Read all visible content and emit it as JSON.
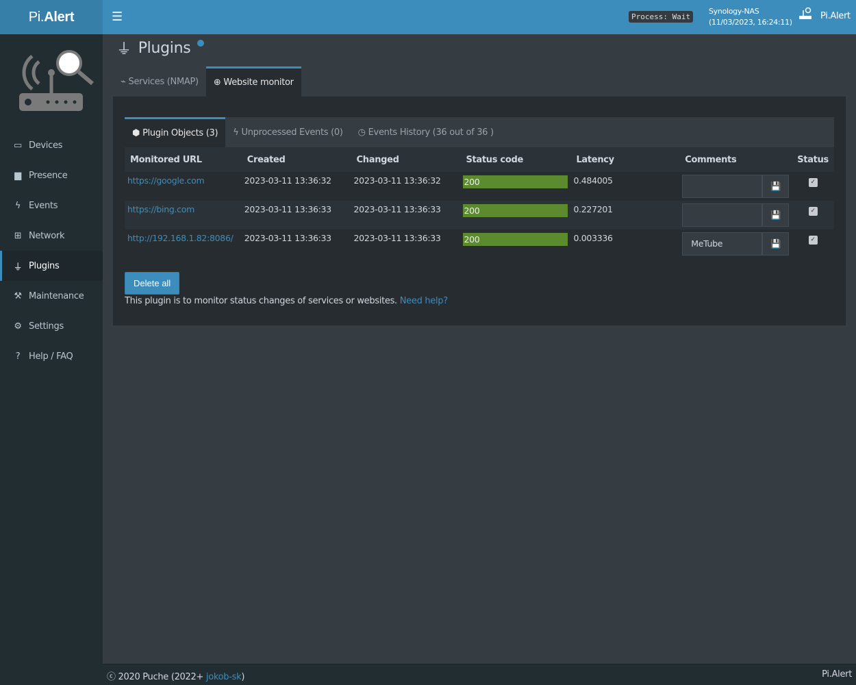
{
  "header": {
    "logo_prefix": "Pi.",
    "logo_bold": "Alert",
    "menu_icon": "bars-icon",
    "process": "Process: Wait",
    "host": "Synology-NAS",
    "datetime": "(11/03/2023, 16:24:11)",
    "user": "Pi.Alert"
  },
  "sidebar": {
    "items": [
      {
        "label": "Devices",
        "icon": "laptop-icon",
        "glyph": "💻"
      },
      {
        "label": "Presence",
        "icon": "calendar-icon",
        "glyph": "▇"
      },
      {
        "label": "Events",
        "icon": "bolt-icon",
        "glyph": "⚡"
      },
      {
        "label": "Network",
        "icon": "sitemap-icon",
        "glyph": "品"
      },
      {
        "label": "Plugins",
        "icon": "plug-icon",
        "glyph": "🔌",
        "active": true
      },
      {
        "label": "Maintenance",
        "icon": "wrench-icon",
        "glyph": "🔧"
      },
      {
        "label": "Settings",
        "icon": "cog-icon",
        "glyph": "⚙"
      },
      {
        "label": "Help / FAQ",
        "icon": "question-icon",
        "glyph": "?"
      }
    ]
  },
  "page": {
    "title": "Plugins"
  },
  "outer_tabs": [
    {
      "label": "Services (NMAP)",
      "glyph": "📡"
    },
    {
      "label": "Website monitor",
      "glyph": "🌐"
    }
  ],
  "inner_tabs": [
    {
      "label": "Plugin Objects (3)",
      "glyph": "⬢"
    },
    {
      "label": "Unprocessed Events (0)",
      "glyph": "⚡"
    },
    {
      "label": "Events History (36 out of 36 )",
      "glyph": "●"
    }
  ],
  "table": {
    "headers": [
      "Monitored URL",
      "Created",
      "Changed",
      "Status code",
      "Latency",
      "Comments",
      "Status"
    ],
    "rows": [
      {
        "url": "https://google.com",
        "created": "2023-03-11 13:36:32",
        "changed": "2023-03-11 13:36:32",
        "code": "200",
        "latency": "0.484005",
        "comment": ""
      },
      {
        "url": "https://bing.com",
        "created": "2023-03-11 13:36:33",
        "changed": "2023-03-11 13:36:33",
        "code": "200",
        "latency": "0.227201",
        "comment": ""
      },
      {
        "url": "http://192.168.1.82:8086/",
        "created": "2023-03-11 13:36:33",
        "changed": "2023-03-11 13:36:33",
        "code": "200",
        "latency": "0.003336",
        "comment": "MeTube"
      }
    ]
  },
  "actions": {
    "delete_all": "Delete all",
    "help_text": "This plugin is to monitor status changes of services or websites.",
    "help_link": "Need help?"
  },
  "footer": {
    "copy": "ⓒ 2020 Puche (2022+ ",
    "author": "jokob-sk",
    "close": ")",
    "right": "Pi.Alert"
  },
  "colors": {
    "accent": "#3c8dbc",
    "status_ok": "#5b8a2f",
    "sidebar": "#222d32"
  }
}
